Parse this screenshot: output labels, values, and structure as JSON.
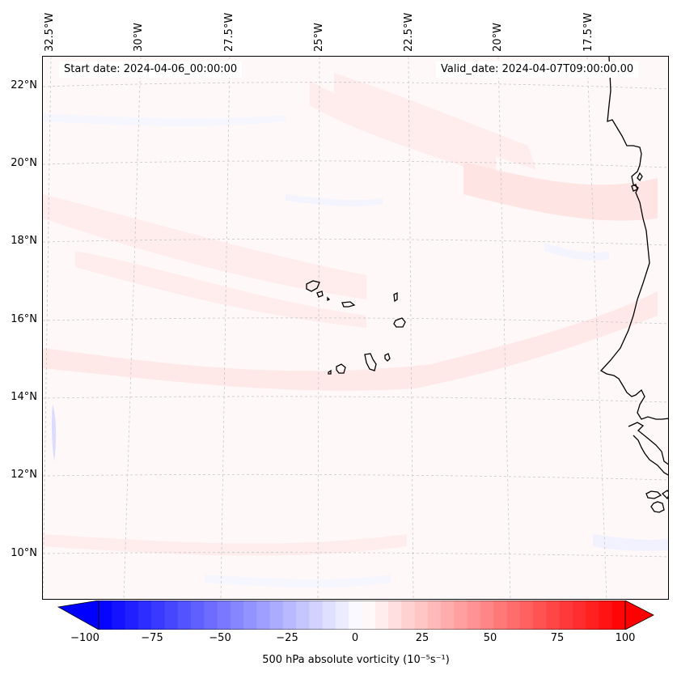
{
  "header": {
    "start_date": "Start date: 2024-04-06_00:00:00",
    "valid_date": "Valid_date: 2024-04-07T09:00:00.00"
  },
  "map": {
    "lat_labels": [
      "22°N",
      "20°N",
      "18°N",
      "16°N",
      "14°N",
      "12°N",
      "10°N"
    ],
    "lon_labels": [
      "32.5°W",
      "30°W",
      "27.5°W",
      "25°W",
      "22.5°W",
      "20°W",
      "17.5°W"
    ],
    "features": [
      "Cape Verde islands",
      "West African coastline"
    ],
    "field_colors": {
      "background": "#fff8f8",
      "weak_positive": "#ffecec",
      "positive": "#ffe0e0",
      "weak_negative": "#f4f4ff",
      "negative": "#dcdcff",
      "coastline": "#000000",
      "gridline": "#c8c8c8"
    }
  },
  "colorbar": {
    "title": "500 hPa absolute vorticity (10⁻⁵s⁻¹)",
    "min": -100,
    "max": 100,
    "tick_labels": [
      "−100",
      "−75",
      "−50",
      "−25",
      "0",
      "25",
      "50",
      "75",
      "100"
    ],
    "cmap": "bwr",
    "levels": 40
  }
}
